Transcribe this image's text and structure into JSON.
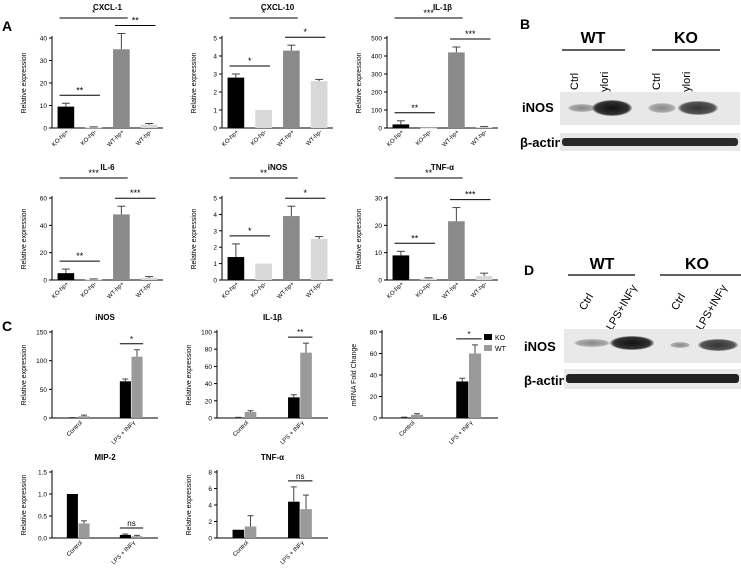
{
  "panel_labels": {
    "a": "A",
    "b": "B",
    "c": "C",
    "d": "D"
  },
  "colors": {
    "ko": "#000000",
    "wt_plus": "#8a8a8a",
    "ko_minus": "#d8d8d8",
    "wt_minus": "#d8d8d8",
    "wt_grey": "#9a9a9a"
  },
  "chart_data": [
    {
      "type": "bar",
      "panel": "A",
      "title": "CXCL-1",
      "ylabel": "Relative expression",
      "ylim": [
        0,
        40
      ],
      "yticks": [
        0,
        10,
        20,
        30,
        40
      ],
      "categories": [
        "KO-hp+",
        "KO-hp-",
        "WT-hp+",
        "WT-hp-"
      ],
      "values": [
        9.5,
        0.3,
        35,
        1.5
      ],
      "errors": [
        1.5,
        0.2,
        7,
        0.5
      ],
      "brackets": [
        {
          "from": 0,
          "to": 1,
          "label": "**"
        },
        {
          "from": 0,
          "to": 2,
          "label": "*"
        },
        {
          "from": 2,
          "to": 3,
          "label": "**"
        }
      ]
    },
    {
      "type": "bar",
      "panel": "A",
      "title": "CXCL-10",
      "ylabel": "Relative expression",
      "ylim": [
        0,
        5
      ],
      "yticks": [
        0,
        1,
        2,
        3,
        4,
        5
      ],
      "categories": [
        "KO-hp+",
        "KO-hp-",
        "WT-hp+",
        "WT-hp-"
      ],
      "values": [
        2.8,
        1.0,
        4.3,
        2.6
      ],
      "errors": [
        0.2,
        0,
        0.3,
        0.1
      ],
      "brackets": [
        {
          "from": 0,
          "to": 1,
          "label": "*"
        },
        {
          "from": 0,
          "to": 2,
          "label": "*"
        },
        {
          "from": 2,
          "to": 3,
          "label": "*"
        }
      ]
    },
    {
      "type": "bar",
      "panel": "A",
      "title": "IL-1β",
      "ylabel": "Relative expression",
      "ylim": [
        0,
        500
      ],
      "yticks": [
        0,
        100,
        200,
        300,
        400,
        500
      ],
      "categories": [
        "KO-hp+",
        "KO-hp-",
        "WT-hp+",
        "WT-hp-"
      ],
      "values": [
        20,
        1,
        420,
        5
      ],
      "errors": [
        20,
        0,
        30,
        3
      ],
      "brackets": [
        {
          "from": 0,
          "to": 1,
          "label": "**"
        },
        {
          "from": 0,
          "to": 2,
          "label": "***"
        },
        {
          "from": 2,
          "to": 3,
          "label": "***"
        }
      ]
    },
    {
      "type": "bar",
      "panel": "A",
      "title": "IL-6",
      "ylabel": "Relative expression",
      "ylim": [
        0,
        60
      ],
      "yticks": [
        0,
        20,
        40,
        60
      ],
      "categories": [
        "KO-hp+",
        "KO-hp-",
        "WT-hp+",
        "WT-hp-"
      ],
      "values": [
        5,
        0.5,
        48,
        1.5
      ],
      "errors": [
        3,
        0.3,
        6,
        1
      ],
      "brackets": [
        {
          "from": 0,
          "to": 1,
          "label": "**"
        },
        {
          "from": 0,
          "to": 2,
          "label": "***"
        },
        {
          "from": 2,
          "to": 3,
          "label": "***"
        }
      ]
    },
    {
      "type": "bar",
      "panel": "A",
      "title": "iNOS",
      "ylabel": "Relative expression",
      "ylim": [
        0,
        5
      ],
      "yticks": [
        0,
        1,
        2,
        3,
        4,
        5
      ],
      "categories": [
        "KO-hp+",
        "KO-hp-",
        "WT-hp+",
        "WT-hp-"
      ],
      "values": [
        1.4,
        1.0,
        3.9,
        2.5
      ],
      "errors": [
        0.8,
        0,
        0.6,
        0.15
      ],
      "brackets": [
        {
          "from": 0,
          "to": 1,
          "label": "*"
        },
        {
          "from": 0,
          "to": 2,
          "label": "**"
        },
        {
          "from": 2,
          "to": 3,
          "label": "*"
        }
      ]
    },
    {
      "type": "bar",
      "panel": "A",
      "title": "TNF-α",
      "ylabel": "Relative expression",
      "ylim": [
        0,
        30
      ],
      "yticks": [
        0,
        10,
        20,
        30
      ],
      "categories": [
        "KO-hp+",
        "KO-hp-",
        "WT-hp+",
        "WT-hp-"
      ],
      "values": [
        9,
        0.5,
        21.5,
        1.5
      ],
      "errors": [
        1.5,
        0.3,
        5,
        1
      ],
      "brackets": [
        {
          "from": 0,
          "to": 1,
          "label": "**"
        },
        {
          "from": 0,
          "to": 2,
          "label": "**"
        },
        {
          "from": 2,
          "to": 3,
          "label": "***"
        }
      ]
    },
    {
      "type": "bar",
      "panel": "C",
      "title": "iNOS",
      "ylabel": "Relative expression",
      "ylim": [
        0,
        150
      ],
      "yticks": [
        0,
        50,
        100,
        150
      ],
      "categories": [
        "Control",
        "LPS + INFγ"
      ],
      "series": [
        {
          "name": "KO",
          "values": [
            0.5,
            64
          ],
          "errors": [
            0.3,
            4
          ]
        },
        {
          "name": "WT",
          "values": [
            3,
            107
          ],
          "errors": [
            2,
            12
          ]
        }
      ],
      "brackets": [
        {
          "group": 1,
          "label": "*"
        }
      ]
    },
    {
      "type": "bar",
      "panel": "C",
      "title": "IL-1β",
      "ylabel": "Relative expression",
      "ylim": [
        0,
        100
      ],
      "yticks": [
        0,
        20,
        40,
        60,
        80,
        100
      ],
      "categories": [
        "Control",
        "LPS + INFγ"
      ],
      "series": [
        {
          "name": "KO",
          "values": [
            0.5,
            24
          ],
          "errors": [
            0.3,
            3
          ]
        },
        {
          "name": "WT",
          "values": [
            7,
            76
          ],
          "errors": [
            1.5,
            11
          ]
        }
      ],
      "brackets": [
        {
          "group": 1,
          "label": "**"
        }
      ]
    },
    {
      "type": "bar",
      "panel": "C",
      "title": "IL-6",
      "ylabel": "mRNA Fold Change",
      "ylim": [
        0,
        80
      ],
      "yticks": [
        0,
        20,
        40,
        60,
        80
      ],
      "categories": [
        "Control",
        "LPS + INFγ"
      ],
      "series": [
        {
          "name": "KO",
          "values": [
            0.5,
            34
          ],
          "errors": [
            0.3,
            3
          ]
        },
        {
          "name": "WT",
          "values": [
            3,
            60
          ],
          "errors": [
            1,
            8
          ]
        }
      ],
      "brackets": [
        {
          "group": 1,
          "label": "*"
        }
      ],
      "legend": {
        "position": "top-right",
        "entries": [
          "KO",
          "WT"
        ]
      }
    },
    {
      "type": "bar",
      "panel": "C",
      "title": "MIP-2",
      "ylabel": "Relative expression",
      "ylim": [
        0,
        1.5
      ],
      "yticks": [
        "0.0",
        "0.5",
        "1.0",
        "1.5"
      ],
      "categories": [
        "Control",
        "LPS + INFγ"
      ],
      "series": [
        {
          "name": "KO",
          "values": [
            1.0,
            0.07
          ],
          "errors": [
            0,
            0.02
          ]
        },
        {
          "name": "WT",
          "values": [
            0.33,
            0.04
          ],
          "errors": [
            0.06,
            0.02
          ]
        }
      ],
      "brackets": [
        {
          "group": 1,
          "label": "ns"
        }
      ]
    },
    {
      "type": "bar",
      "panel": "C",
      "title": "TNF-α",
      "ylabel": "Relative expression",
      "ylim": [
        0,
        8
      ],
      "yticks": [
        0,
        2,
        4,
        6,
        8
      ],
      "categories": [
        "Control",
        "LPS + INFγ"
      ],
      "series": [
        {
          "name": "KO",
          "values": [
            1.0,
            4.4
          ],
          "errors": [
            0,
            1.8
          ]
        },
        {
          "name": "WT",
          "values": [
            1.4,
            3.5
          ],
          "errors": [
            1.3,
            1.7
          ]
        }
      ],
      "brackets": [
        {
          "group": 1,
          "label": "ns"
        }
      ]
    }
  ],
  "blot_b": {
    "groups": [
      "WT",
      "KO"
    ],
    "lanes": [
      "Ctrl",
      "H. pylori",
      "Ctrl",
      "H. pylori"
    ],
    "rows": [
      "iNOS",
      "β-actin"
    ]
  },
  "blot_d": {
    "groups": [
      "WT",
      "KO"
    ],
    "lanes": [
      "Ctrl",
      "LPS+INFγ",
      "Ctrl",
      "LPS+INFγ"
    ],
    "rows": [
      "iNOS",
      "β-actin"
    ]
  }
}
